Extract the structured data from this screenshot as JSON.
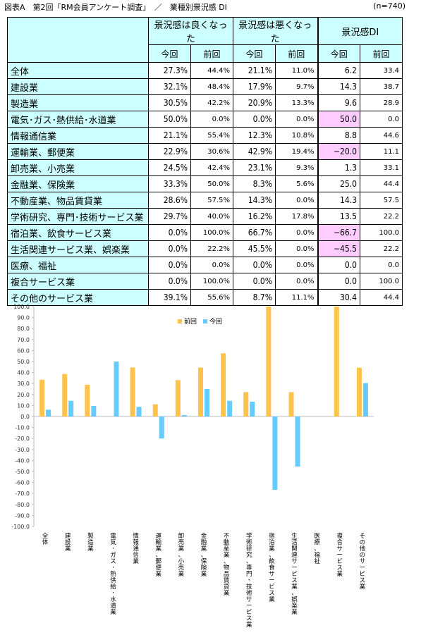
{
  "title": "図表A　第2回「RM会員アンケート調査」　／　業種別景況感 DI",
  "n": "(n=740)",
  "headers": {
    "good": "景況感は良くなった",
    "bad": "景況感は悪くなった",
    "di": "景況感DI",
    "current": "今回",
    "previous": "前回"
  },
  "rows": [
    {
      "name": "全体",
      "good_cur": "27.3%",
      "good_prev": "44.4%",
      "bad_cur": "21.1%",
      "bad_prev": "11.0%",
      "di_cur": "6.2",
      "di_prev": "33.4",
      "hl": false
    },
    {
      "name": "建設業",
      "good_cur": "32.1%",
      "good_prev": "48.4%",
      "bad_cur": "17.9%",
      "bad_prev": "9.7%",
      "di_cur": "14.3",
      "di_prev": "38.7",
      "hl": false
    },
    {
      "name": "製造業",
      "good_cur": "30.5%",
      "good_prev": "42.2%",
      "bad_cur": "20.9%",
      "bad_prev": "13.3%",
      "di_cur": "9.6",
      "di_prev": "28.9",
      "hl": false
    },
    {
      "name": "電気･ガス･熱供給･水道業",
      "good_cur": "50.0%",
      "good_prev": "0.0%",
      "bad_cur": "0.0%",
      "bad_prev": "0.0%",
      "di_cur": "50.0",
      "di_prev": "0.0",
      "hl": true
    },
    {
      "name": "情報通信業",
      "good_cur": "21.1%",
      "good_prev": "55.4%",
      "bad_cur": "12.3%",
      "bad_prev": "10.8%",
      "di_cur": "8.8",
      "di_prev": "44.6",
      "hl": false
    },
    {
      "name": "運輸業、郵便業",
      "good_cur": "22.9%",
      "good_prev": "30.6%",
      "bad_cur": "42.9%",
      "bad_prev": "19.4%",
      "di_cur": "−20.0",
      "di_prev": "11.1",
      "hl": true
    },
    {
      "name": "卸売業、小売業",
      "good_cur": "24.5%",
      "good_prev": "42.4%",
      "bad_cur": "23.1%",
      "bad_prev": "9.3%",
      "di_cur": "1.3",
      "di_prev": "33.1",
      "hl": false
    },
    {
      "name": "金融業、保険業",
      "good_cur": "33.3%",
      "good_prev": "50.0%",
      "bad_cur": "8.3%",
      "bad_prev": "5.6%",
      "di_cur": "25.0",
      "di_prev": "44.4",
      "hl": false
    },
    {
      "name": "不動産業、物品賃貸業",
      "good_cur": "28.6%",
      "good_prev": "57.5%",
      "bad_cur": "14.3%",
      "bad_prev": "0.0%",
      "di_cur": "14.3",
      "di_prev": "57.5",
      "hl": false
    },
    {
      "name": "学術研究、専門･技術サービス業",
      "good_cur": "29.7%",
      "good_prev": "40.0%",
      "bad_cur": "16.2%",
      "bad_prev": "17.8%",
      "di_cur": "13.5",
      "di_prev": "22.2",
      "hl": false
    },
    {
      "name": "宿泊業、飲食サービス業",
      "good_cur": "0.0%",
      "good_prev": "100.0%",
      "bad_cur": "66.7%",
      "bad_prev": "0.0%",
      "di_cur": "−66.7",
      "di_prev": "100.0",
      "hl": true
    },
    {
      "name": "生活関連サービス業、娯楽業",
      "good_cur": "0.0%",
      "good_prev": "22.2%",
      "bad_cur": "45.5%",
      "bad_prev": "0.0%",
      "di_cur": "−45.5",
      "di_prev": "22.2",
      "hl": true
    },
    {
      "name": "医療、福祉",
      "good_cur": "0.0%",
      "good_prev": "0.0%",
      "bad_cur": "0.0%",
      "bad_prev": "0.0%",
      "di_cur": "0.0",
      "di_prev": "0.0",
      "hl": false
    },
    {
      "name": "複合サービス業",
      "good_cur": "0.0%",
      "good_prev": "100.0%",
      "bad_cur": "0.0%",
      "bad_prev": "0.0%",
      "di_cur": "0.0",
      "di_prev": "100.0",
      "hl": false
    },
    {
      "name": "その他のサービス業",
      "good_cur": "39.1%",
      "good_prev": "55.6%",
      "bad_cur": "8.7%",
      "bad_prev": "11.1%",
      "di_cur": "30.4",
      "di_prev": "44.4",
      "hl": false
    }
  ],
  "chart_data": {
    "type": "bar",
    "categories": [
      "全体",
      "建設業",
      "製造業",
      "電気･ガス･熱供給･水道業",
      "情報通信業",
      "運輸業、郵便業",
      "卸売業、小売業",
      "金融業、保険業",
      "不動産業、物品賃貸業",
      "学術研究、専門･技術サービス業",
      "宿泊業、飲食サービス業",
      "生活関連サービス業、娯楽業",
      "医療、福祉",
      "複合サービス業",
      "その他のサービス業"
    ],
    "series": [
      {
        "name": "前回",
        "color": "#ffc34d",
        "values": [
          33.4,
          38.7,
          28.9,
          0.0,
          44.6,
          11.1,
          33.1,
          44.4,
          57.5,
          22.2,
          100.0,
          22.2,
          0.0,
          100.0,
          44.4
        ]
      },
      {
        "name": "今回",
        "color": "#66ccff",
        "values": [
          6.2,
          14.3,
          9.6,
          50.0,
          8.8,
          -20.0,
          1.3,
          25.0,
          14.3,
          13.5,
          -66.7,
          -45.5,
          0.0,
          0.0,
          30.4
        ]
      }
    ],
    "ylim": [
      -100,
      100
    ],
    "ytick_step": 10,
    "grid": false,
    "legend": "top-center"
  }
}
